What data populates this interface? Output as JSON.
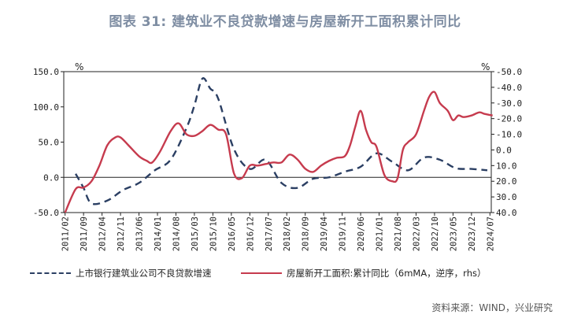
{
  "title": "图表 31: 建筑业不良贷款增速与房屋新开工面积累计同比",
  "source": "资料来源：WIND，兴业研究",
  "chart_data": {
    "type": "line",
    "left_unit": "%",
    "right_unit": "%",
    "left_axis": {
      "min": -50,
      "max": 150,
      "ticks": [
        "150.0",
        "100.0",
        "50.0",
        "0.0",
        "-50.0"
      ]
    },
    "right_axis": {
      "min": -50,
      "max": 40,
      "reversed": true,
      "ticks": [
        "-50.0",
        "-40.0",
        "-30.0",
        "-20.0",
        "-10.0",
        "0.0",
        "10.0",
        "20.0",
        "30.0",
        "40.0"
      ]
    },
    "x_labels": [
      "2011/02",
      "2011/09",
      "2012/04",
      "2012/11",
      "2013/06",
      "2014/01",
      "2014/08",
      "2015/03",
      "2015/10",
      "2016/05",
      "2016/12",
      "2017/07",
      "2018/02",
      "2018/09",
      "2019/04",
      "2019/11",
      "2020/06",
      "2021/01",
      "2021/08",
      "2022/03",
      "2022/10",
      "2023/05",
      "2023/12",
      "2024/07"
    ],
    "series": [
      {
        "name": "上市银行建筑业公司不良贷款增速",
        "axis": "left",
        "style": "dashed",
        "color": "#2b3f63",
        "points": [
          [
            "2011/06",
            5
          ],
          [
            "2011/09",
            -15
          ],
          [
            "2011/12",
            -37
          ],
          [
            "2012/06",
            -33
          ],
          [
            "2012/12",
            -18
          ],
          [
            "2013/06",
            -8
          ],
          [
            "2013/12",
            10
          ],
          [
            "2014/06",
            25
          ],
          [
            "2014/12",
            70
          ],
          [
            "2015/03",
            102
          ],
          [
            "2015/06",
            140
          ],
          [
            "2015/09",
            126
          ],
          [
            "2015/12",
            112
          ],
          [
            "2016/06",
            40
          ],
          [
            "2016/12",
            12
          ],
          [
            "2017/06",
            25
          ],
          [
            "2017/12",
            -8
          ],
          [
            "2018/06",
            -15
          ],
          [
            "2018/12",
            -2
          ],
          [
            "2019/06",
            0
          ],
          [
            "2019/12",
            8
          ],
          [
            "2020/06",
            15
          ],
          [
            "2020/12",
            34
          ],
          [
            "2021/06",
            22
          ],
          [
            "2021/12",
            10
          ],
          [
            "2022/06",
            28
          ],
          [
            "2022/12",
            25
          ],
          [
            "2023/06",
            13
          ],
          [
            "2023/12",
            12
          ],
          [
            "2024/06",
            10
          ]
        ]
      },
      {
        "name": "房屋新开工面积:累计同比（6mMA，逆序，rhs）",
        "axis": "right",
        "style": "solid",
        "color": "#c63b4e",
        "points": [
          [
            "2011/02",
            40
          ],
          [
            "2011/06",
            25
          ],
          [
            "2011/09",
            24
          ],
          [
            "2011/12",
            20
          ],
          [
            "2012/03",
            10
          ],
          [
            "2012/06",
            -3
          ],
          [
            "2012/09",
            -8
          ],
          [
            "2012/11",
            -8
          ],
          [
            "2013/02",
            -3
          ],
          [
            "2013/06",
            4
          ],
          [
            "2013/09",
            7
          ],
          [
            "2013/11",
            8
          ],
          [
            "2014/02",
            1
          ],
          [
            "2014/06",
            -12
          ],
          [
            "2014/09",
            -17
          ],
          [
            "2014/12",
            -10
          ],
          [
            "2015/03",
            -9
          ],
          [
            "2015/06",
            -12
          ],
          [
            "2015/09",
            -16
          ],
          [
            "2015/12",
            -13
          ],
          [
            "2016/03",
            -10
          ],
          [
            "2016/06",
            15
          ],
          [
            "2016/09",
            18
          ],
          [
            "2016/12",
            10
          ],
          [
            "2017/03",
            10
          ],
          [
            "2017/06",
            9
          ],
          [
            "2017/09",
            8
          ],
          [
            "2017/12",
            8
          ],
          [
            "2018/03",
            3
          ],
          [
            "2018/06",
            6
          ],
          [
            "2018/09",
            12
          ],
          [
            "2018/12",
            14
          ],
          [
            "2019/03",
            10
          ],
          [
            "2019/06",
            7
          ],
          [
            "2019/09",
            5
          ],
          [
            "2019/12",
            4
          ],
          [
            "2020/02",
            -3
          ],
          [
            "2020/04",
            -15
          ],
          [
            "2020/06",
            -25
          ],
          [
            "2020/08",
            -13
          ],
          [
            "2020/10",
            -5
          ],
          [
            "2020/12",
            -2
          ],
          [
            "2021/03",
            16
          ],
          [
            "2021/06",
            20
          ],
          [
            "2021/08",
            18
          ],
          [
            "2021/10",
            0
          ],
          [
            "2021/12",
            -5
          ],
          [
            "2022/03",
            -10
          ],
          [
            "2022/06",
            -25
          ],
          [
            "2022/08",
            -34
          ],
          [
            "2022/10",
            -37
          ],
          [
            "2022/12",
            -30
          ],
          [
            "2023/03",
            -25
          ],
          [
            "2023/05",
            -19
          ],
          [
            "2023/07",
            -22
          ],
          [
            "2023/09",
            -21
          ],
          [
            "2023/12",
            -22
          ],
          [
            "2024/03",
            -24
          ],
          [
            "2024/05",
            -23
          ],
          [
            "2024/08",
            -22
          ]
        ]
      }
    ]
  }
}
